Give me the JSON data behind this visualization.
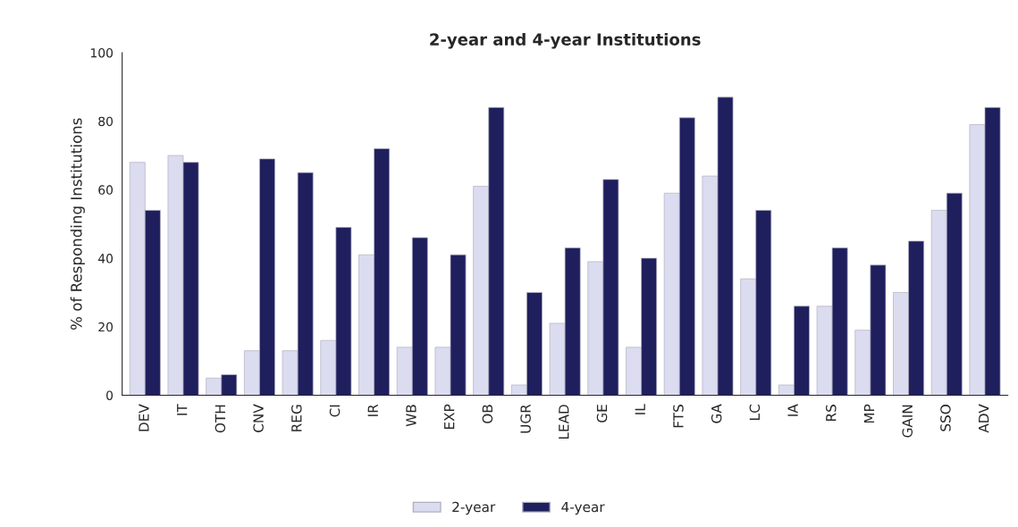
{
  "chart_data": {
    "type": "bar",
    "title": "2-year and 4-year Institutions",
    "ylabel": "% of Responding Institutions",
    "categories": [
      "DEV",
      "IT",
      "OTH",
      "CNV",
      "REG",
      "CI",
      "IR",
      "WB",
      "EXP",
      "OB",
      "UGR",
      "LEAD",
      "GE",
      "IL",
      "FTS",
      "GA",
      "LC",
      "IA",
      "RS",
      "MP",
      "GAIN",
      "SSO",
      "ADV"
    ],
    "series": [
      {
        "name": "2-year",
        "color": "#dcdcf0",
        "values": [
          68,
          70,
          5,
          13,
          13,
          16,
          41,
          14,
          14,
          61,
          3,
          21,
          39,
          14,
          59,
          64,
          34,
          3,
          26,
          19,
          30,
          54,
          79
        ]
      },
      {
        "name": "4-year",
        "color": "#1f1f5e",
        "values": [
          54,
          68,
          6,
          69,
          65,
          49,
          72,
          46,
          41,
          84,
          30,
          43,
          63,
          40,
          81,
          87,
          54,
          26,
          43,
          38,
          45,
          59,
          84
        ]
      }
    ],
    "ylim": [
      0,
      100
    ],
    "yticks": [
      0,
      20,
      40,
      60,
      80,
      100
    ],
    "grid": false,
    "legend": "bottom"
  }
}
